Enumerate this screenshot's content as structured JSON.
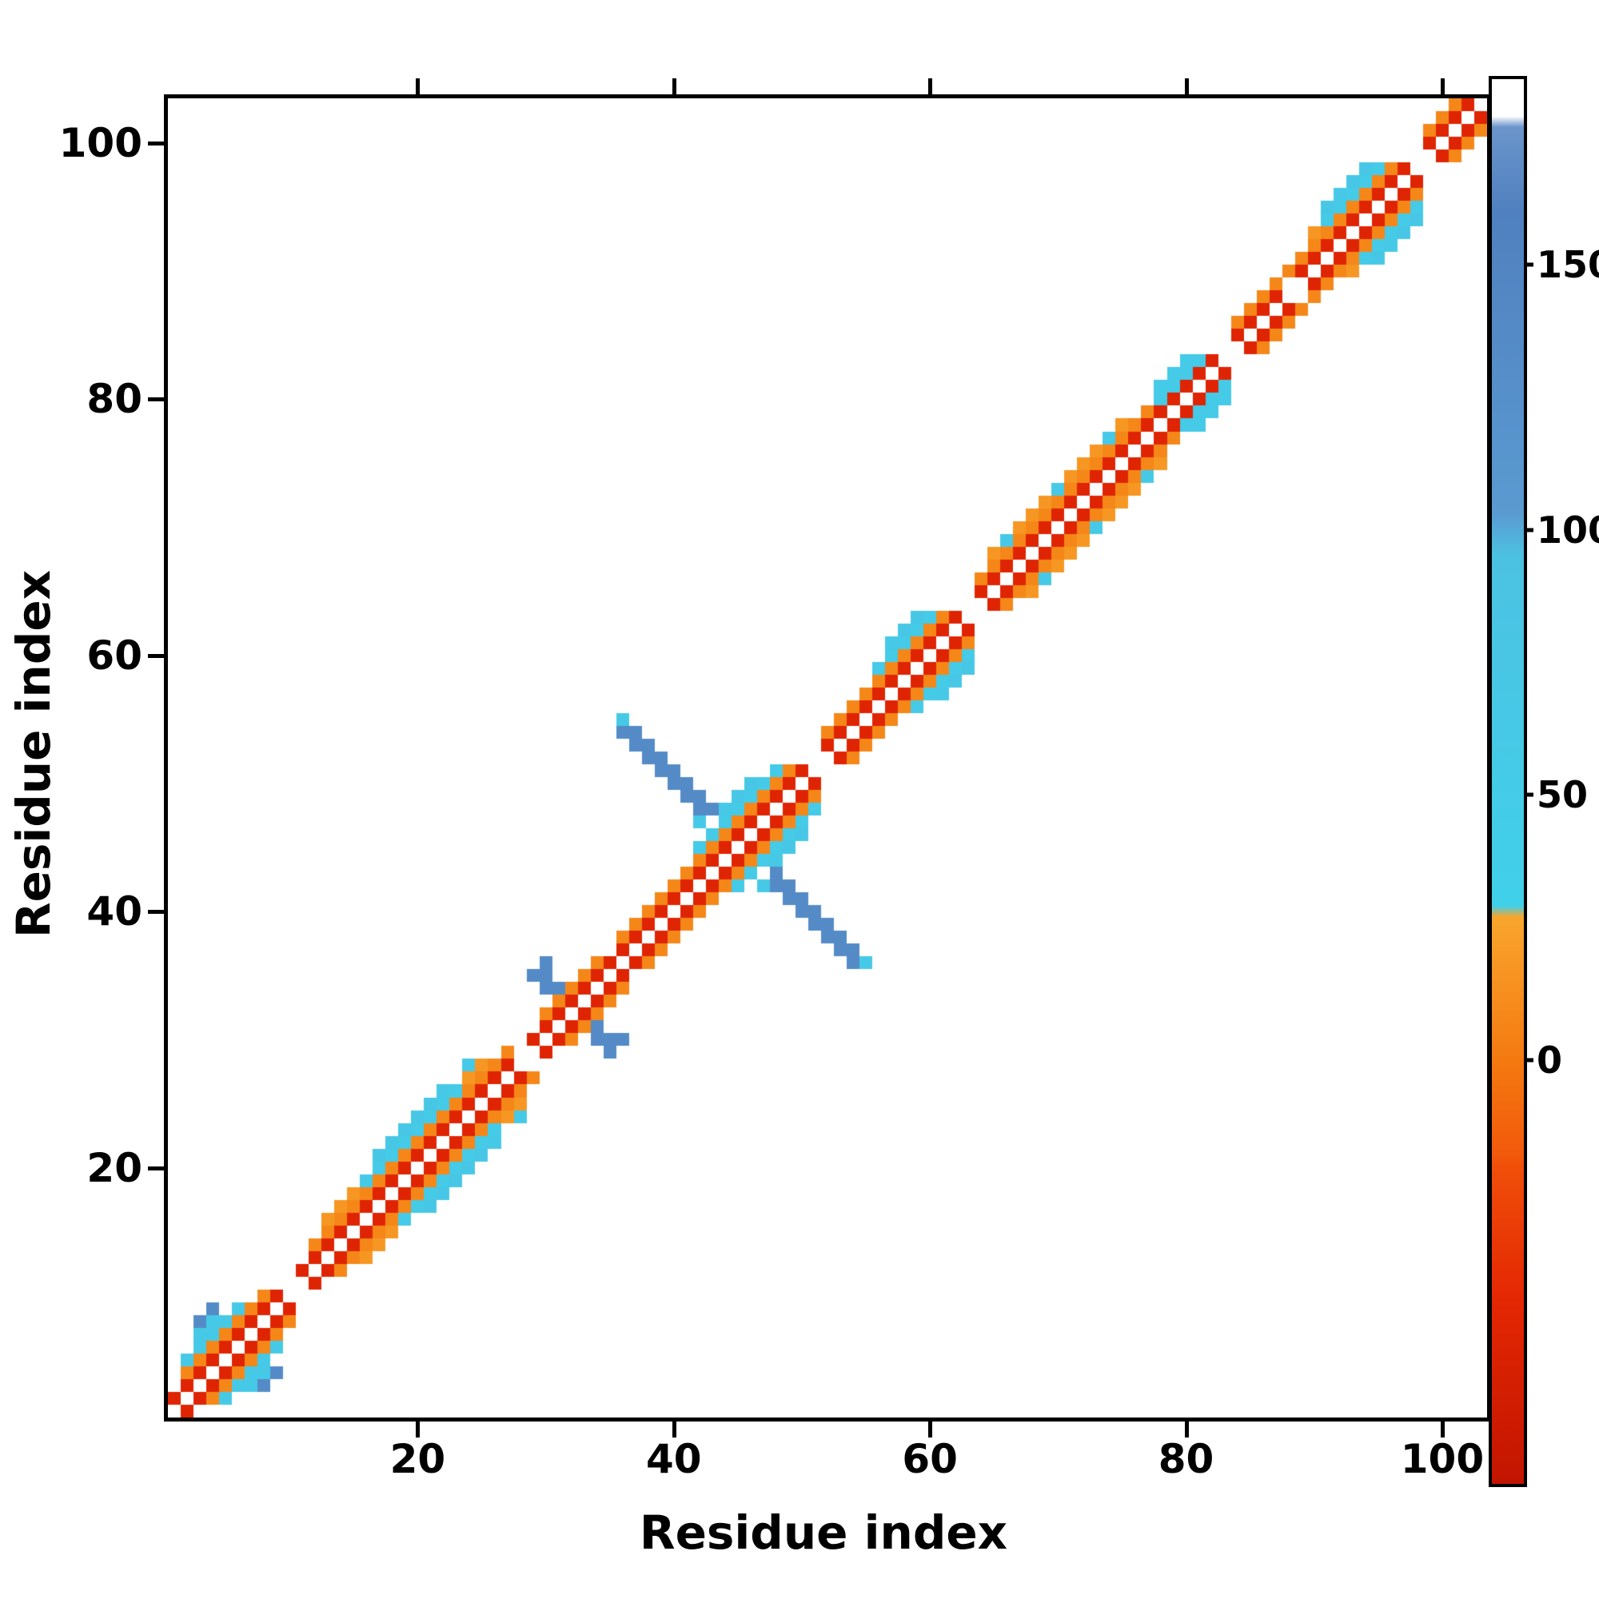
{
  "figure": {
    "xlabel": "Residue index",
    "ylabel": "Residue index"
  },
  "chart_data": {
    "type": "heatmap",
    "title": "",
    "xlabel": "Residue index",
    "ylabel": "Residue index",
    "x_range": [
      1,
      103
    ],
    "y_range": [
      1,
      103
    ],
    "x_ticks": [
      20,
      40,
      60,
      80,
      100
    ],
    "y_ticks": [
      20,
      40,
      60,
      80,
      100
    ],
    "n_residues": 103,
    "symmetric": true,
    "grid": false,
    "background_color": "#ffffff",
    "colorbar": {
      "range": [
        -80,
        185
      ],
      "ticks": [
        0,
        50,
        100,
        150
      ],
      "stops": [
        {
          "value": -80,
          "color": "#c21500"
        },
        {
          "value": -45,
          "color": "#e42703"
        },
        {
          "value": -20,
          "color": "#f04f0a"
        },
        {
          "value": -18,
          "color": "#f2590b"
        },
        {
          "value": 0,
          "color": "#f47a10"
        },
        {
          "value": 27,
          "color": "#f9a62d"
        },
        {
          "value": 29,
          "color": "#40d0ea"
        },
        {
          "value": 95,
          "color": "#4cc2e2"
        },
        {
          "value": 103,
          "color": "#5a9ad1"
        },
        {
          "value": 160,
          "color": "#5080bf"
        },
        {
          "value": 176,
          "color": "#6b95cb"
        },
        {
          "value": 178,
          "color": "#ffffff"
        },
        {
          "value": 185,
          "color": "#ffffff"
        }
      ]
    },
    "bands": [
      {
        "offset": 1,
        "value": -50,
        "runs": [
          [
            1,
            9
          ],
          [
            11,
            27
          ],
          [
            29,
            50
          ],
          [
            52,
            62
          ],
          [
            64,
            82
          ],
          [
            84,
            87
          ],
          [
            89,
            97
          ],
          [
            99,
            102
          ]
        ]
      },
      {
        "offset": 2,
        "value": 8,
        "runs": [
          [
            2,
            8
          ],
          [
            12,
            27
          ],
          [
            30,
            34
          ],
          [
            36,
            49
          ],
          [
            52,
            61
          ],
          [
            64,
            77
          ],
          [
            84,
            96
          ],
          [
            99,
            101
          ]
        ]
      },
      {
        "offset": 2,
        "value": 55,
        "runs": [
          [
            78,
            81
          ]
        ]
      },
      {
        "offset": 3,
        "value": 18,
        "runs": [
          [
            13,
            25
          ],
          [
            65,
            75
          ],
          [
            90,
            94
          ]
        ]
      },
      {
        "offset": 3,
        "value": 55,
        "runs": [
          [
            16,
            23
          ],
          [
            42,
            48
          ],
          [
            56,
            60
          ],
          [
            78,
            80
          ],
          [
            91,
            95
          ]
        ]
      },
      {
        "offset": 4,
        "value": 70,
        "runs": [
          [
            17,
            21
          ],
          [
            44,
            46
          ],
          [
            57,
            59
          ],
          [
            91,
            94
          ]
        ]
      }
    ],
    "extra_cells": [
      {
        "value": 60,
        "cells": [
          [
            2,
            5
          ],
          [
            3,
            6
          ],
          [
            3,
            7
          ],
          [
            4,
            7
          ],
          [
            4,
            8
          ],
          [
            5,
            8
          ],
          [
            6,
            9
          ],
          [
            22,
            26
          ],
          [
            24,
            28
          ],
          [
            36,
            55
          ],
          [
            42,
            47
          ],
          [
            44,
            48
          ],
          [
            57,
            61
          ],
          [
            66,
            69
          ],
          [
            70,
            73
          ],
          [
            74,
            77
          ],
          [
            92,
            96
          ]
        ]
      },
      {
        "value": 8,
        "cells": [
          [
            100,
            102
          ],
          [
            101,
            103
          ]
        ]
      },
      {
        "value": 135,
        "cells": [
          [
            3,
            8
          ],
          [
            4,
            9
          ],
          [
            29,
            35
          ],
          [
            30,
            34
          ],
          [
            30,
            35
          ],
          [
            30,
            36
          ],
          [
            31,
            34
          ],
          [
            36,
            54
          ],
          [
            37,
            53
          ],
          [
            37,
            54
          ],
          [
            38,
            52
          ],
          [
            38,
            53
          ],
          [
            39,
            51
          ],
          [
            39,
            52
          ],
          [
            40,
            50
          ],
          [
            40,
            51
          ],
          [
            41,
            49
          ],
          [
            41,
            50
          ],
          [
            42,
            48
          ],
          [
            42,
            49
          ],
          [
            43,
            48
          ]
        ]
      }
    ]
  }
}
